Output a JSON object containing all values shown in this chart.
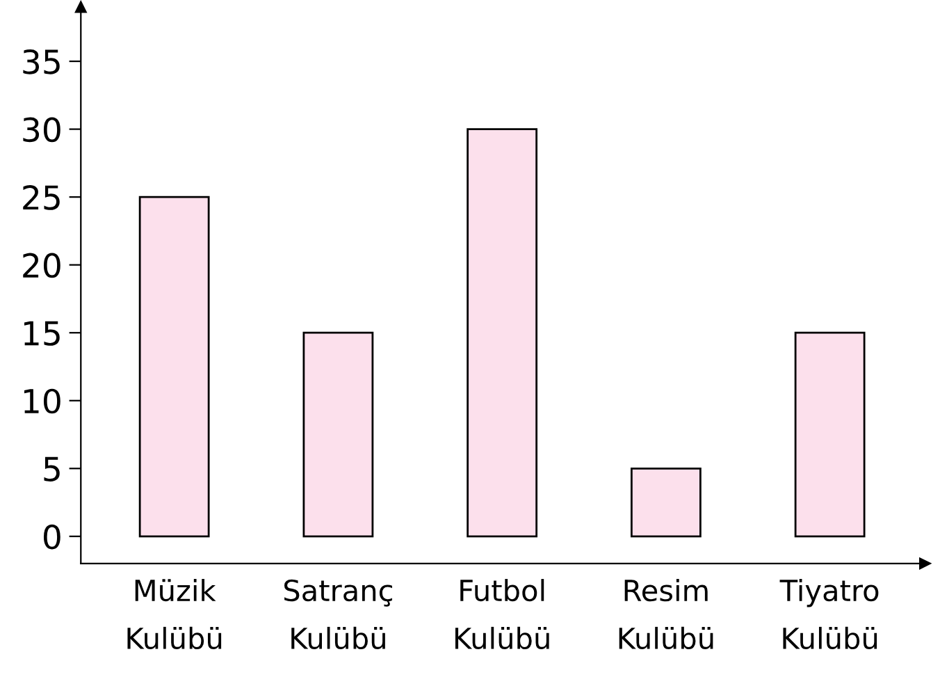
{
  "chart_data": {
    "type": "bar",
    "categories": [
      "Müzik\nKulübü",
      "Satranç\nKulübü",
      "Futbol\nKulübü",
      "Resim\nKulübü",
      "Tiyatro\nKulübü"
    ],
    "values": [
      25,
      15,
      30,
      5,
      15
    ],
    "color": "#fce0ec",
    "ylim": [
      -2,
      39
    ],
    "yticks": [
      0,
      5,
      10,
      15,
      20,
      25,
      30,
      35
    ],
    "grid": false
  }
}
